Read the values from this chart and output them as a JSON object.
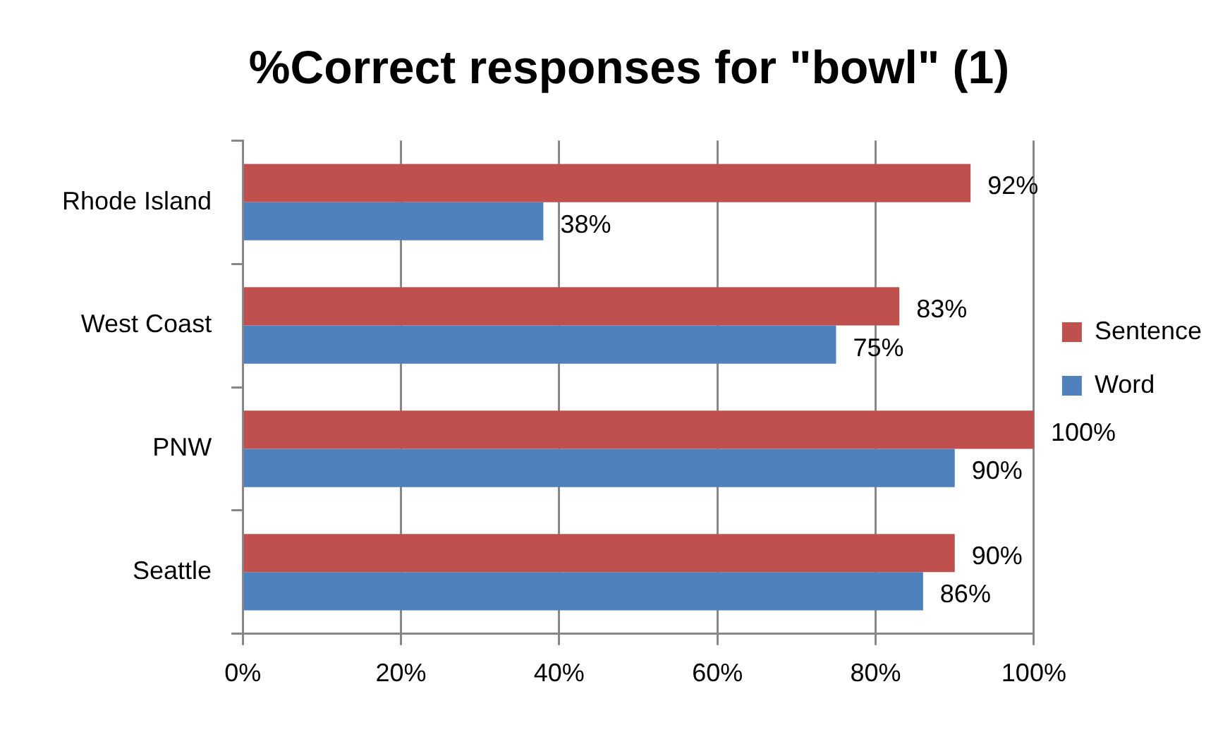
{
  "chart_data": {
    "type": "bar",
    "orientation": "horizontal",
    "title": "%Correct responses for \"bowl\" (1)",
    "categories": [
      "Rhode Island",
      "West Coast",
      "PNW",
      "Seattle"
    ],
    "series": [
      {
        "name": "Sentence",
        "color": "#c0504d",
        "values": [
          92,
          83,
          100,
          90
        ],
        "value_labels": [
          "92%",
          "83%",
          "100%",
          "90%"
        ]
      },
      {
        "name": "Word",
        "color": "#4f81bd",
        "values": [
          38,
          75,
          90,
          86
        ],
        "value_labels": [
          "38%",
          "75%",
          "90%",
          "86%"
        ]
      }
    ],
    "xlim": [
      0,
      100
    ],
    "xticks": [
      {
        "value": 0,
        "label": "0%"
      },
      {
        "value": 20,
        "label": "20%"
      },
      {
        "value": 40,
        "label": "40%"
      },
      {
        "value": 60,
        "label": "60%"
      },
      {
        "value": 80,
        "label": "80%"
      },
      {
        "value": 100,
        "label": "100%"
      }
    ],
    "grid": "x",
    "legend": "right"
  }
}
